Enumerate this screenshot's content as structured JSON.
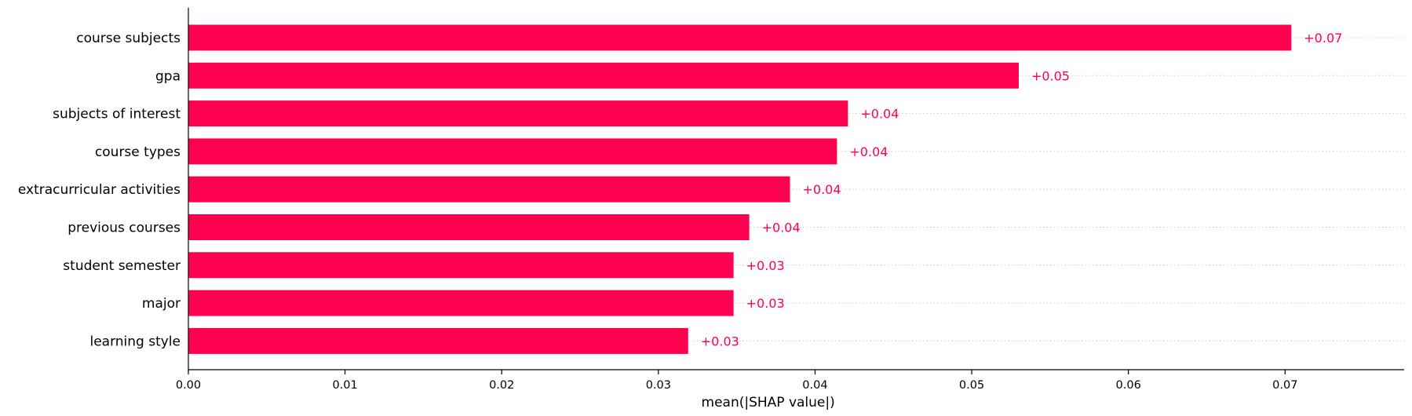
{
  "chart_data": {
    "type": "bar",
    "orientation": "horizontal",
    "categories": [
      "course subjects",
      "gpa",
      "subjects of interest",
      "course types",
      "extracurricular activities",
      "previous courses",
      "student semester",
      "major",
      "learning style"
    ],
    "values": [
      0.0704,
      0.053,
      0.0421,
      0.0414,
      0.0384,
      0.0358,
      0.0348,
      0.0348,
      0.0319
    ],
    "value_labels": [
      "+0.07",
      "+0.05",
      "+0.04",
      "+0.04",
      "+0.04",
      "+0.04",
      "+0.03",
      "+0.03",
      "+0.03"
    ],
    "xlabel": "mean(|SHAP value|)",
    "ylabel": "",
    "xlim": [
      0,
      0.0776
    ],
    "xticks": [
      0.0,
      0.01,
      0.02,
      0.03,
      0.04,
      0.05,
      0.06,
      0.07
    ],
    "xtick_labels": [
      "0.00",
      "0.01",
      "0.02",
      "0.03",
      "0.04",
      "0.05",
      "0.06",
      "0.07"
    ],
    "grid": "horizontal dotted guide lines per row",
    "colors": {
      "bar": "#ff0051",
      "label": "#ff0051",
      "axis": "#000000",
      "guide": "#cccccc"
    }
  }
}
